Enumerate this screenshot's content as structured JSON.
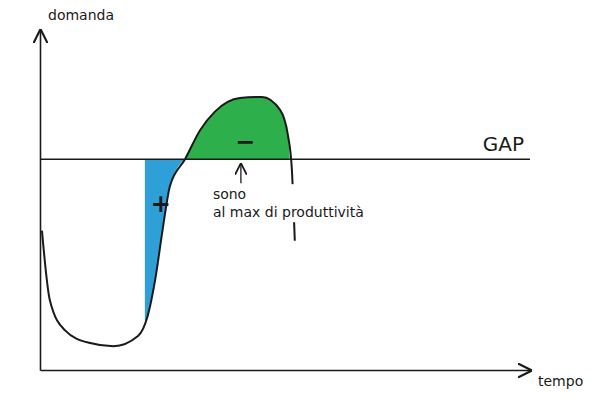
{
  "chart_data": {
    "type": "line",
    "x_label": "tempo",
    "y_label": "domanda",
    "xlim": [
      0,
      100
    ],
    "ylim": [
      0,
      100
    ],
    "tick_labels": false,
    "gap": {
      "value": 62,
      "label": "GAP"
    },
    "series": [
      {
        "type": "line",
        "color": "#1a1a1a",
        "x": [
          0.4,
          2,
          5,
          10,
          15,
          20,
          22,
          23.5,
          25,
          26.5,
          29.6,
          32.7,
          35.7,
          40.8,
          45.3,
          49,
          50.6,
          51.4,
          52
        ],
        "values": [
          41,
          20.6,
          11.8,
          8,
          7,
          10,
          16,
          26.5,
          41,
          54,
          62,
          70.6,
          76,
          80,
          80.3,
          76.5,
          69,
          59,
          38
        ]
      },
      {
        "type": "area",
        "label": "+",
        "color": "#2f9fd8",
        "x": [
          21.4,
          22,
          23.5,
          25,
          26.5,
          29.6
        ],
        "values": [
          14,
          16,
          26.5,
          41,
          54,
          62
        ]
      },
      {
        "type": "area",
        "label": "−",
        "color": "#2db04b",
        "x": [
          29.6,
          32.7,
          35.7,
          40.8,
          45.3,
          49,
          50.6,
          51
        ],
        "values": [
          62,
          70.6,
          76,
          80,
          80.3,
          76.5,
          69,
          62
        ]
      }
    ],
    "annotations": [
      {
        "x": 41,
        "lines": [
          "sono",
          "al max di produttività"
        ]
      }
    ]
  }
}
